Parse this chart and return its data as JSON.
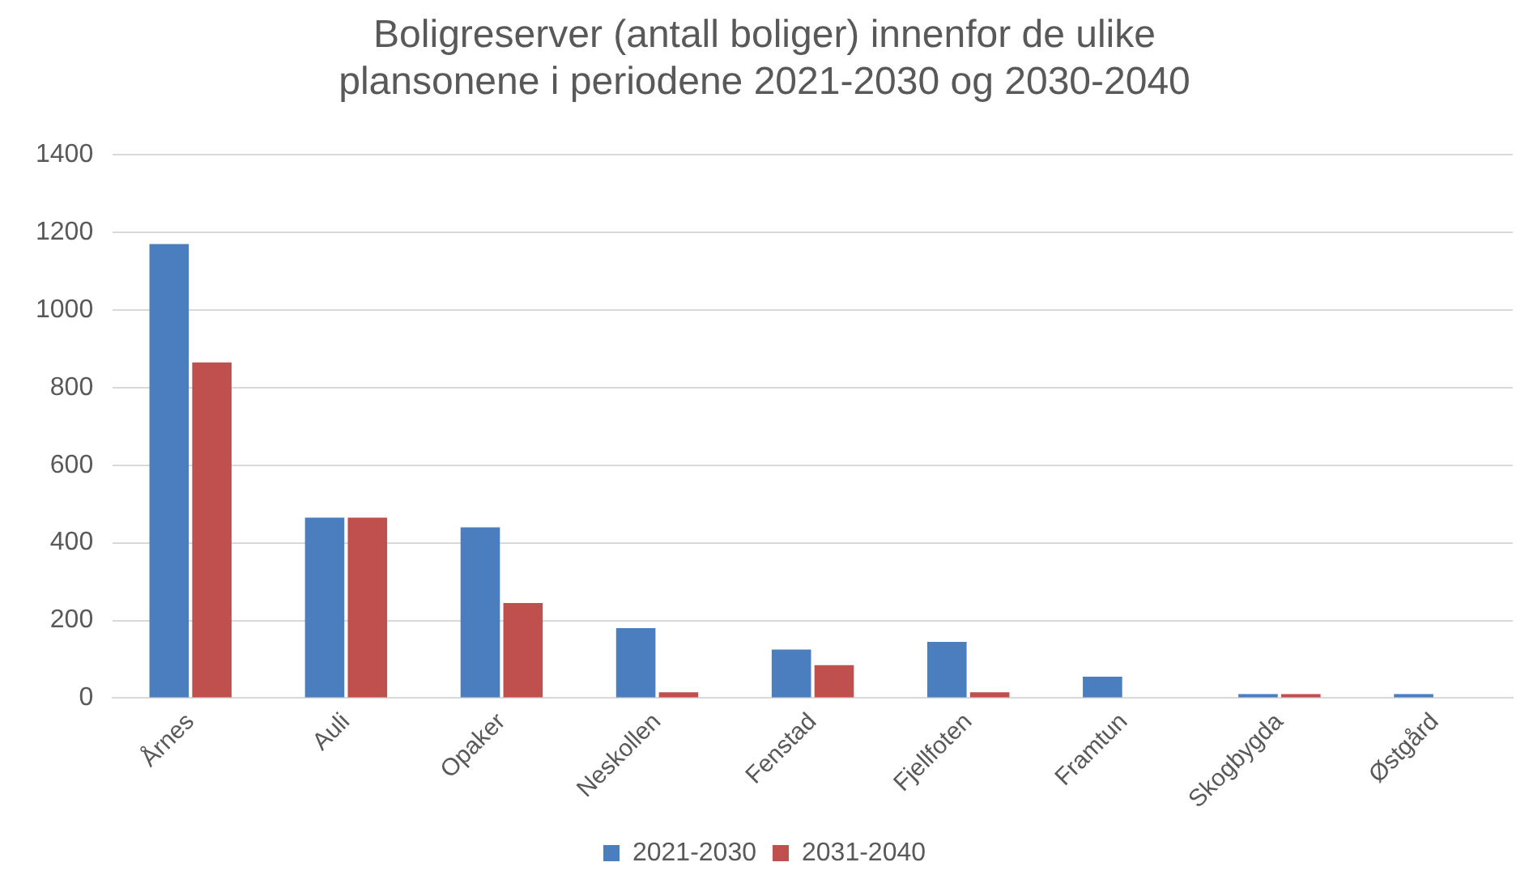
{
  "chart_data": {
    "type": "bar",
    "title": "Boligreserver (antall boliger) innenfor de ulike\nplansonene i periodene 2021-2030 og 2030-2040",
    "categories": [
      "Årnes",
      "Auli",
      "Opaker",
      "Neskollen",
      "Fenstad",
      "Fjellfoten",
      "Framtun",
      "Skogbygda",
      "Østgård"
    ],
    "series": [
      {
        "name": "2021-2030",
        "color": "#4a7ebf",
        "values": [
          1170,
          465,
          440,
          180,
          125,
          145,
          55,
          10,
          10
        ]
      },
      {
        "name": "2031-2040",
        "color": "#c0504d",
        "values": [
          865,
          465,
          245,
          15,
          85,
          15,
          0,
          10,
          0
        ]
      }
    ],
    "ylim": [
      0,
      1400
    ],
    "yticks": [
      0,
      200,
      400,
      600,
      800,
      1000,
      1200,
      1400
    ],
    "grid": "y",
    "legend": "bottom"
  }
}
